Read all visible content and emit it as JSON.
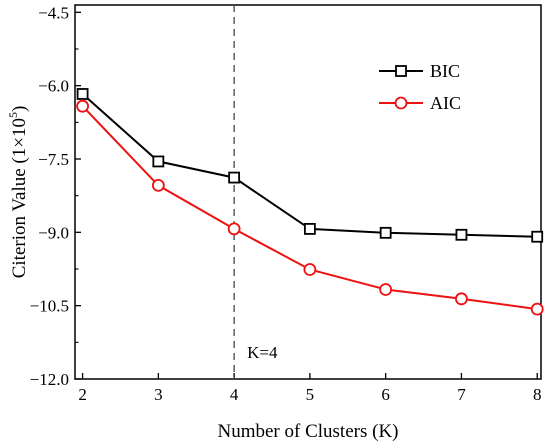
{
  "chart_data": {
    "type": "line",
    "xlabel": "Number of Clusters (K)",
    "ylabel_main": "Citerion Value (1×10",
    "ylabel_exp": "5",
    "ylabel_close": ")",
    "x": [
      2,
      3,
      4,
      5,
      6,
      7,
      8
    ],
    "xlim": [
      1.9,
      8.05
    ],
    "ylim": [
      -12.0,
      -4.35
    ],
    "xticks": [
      2,
      3,
      4,
      5,
      6,
      7,
      8
    ],
    "xtick_labels": [
      "2",
      "3",
      "4",
      "5",
      "6",
      "7",
      "8"
    ],
    "yticks": [
      -12.0,
      -10.5,
      -9.0,
      -7.5,
      -6.0,
      -4.5
    ],
    "ytick_labels": [
      "−12.0",
      "−10.5",
      "−9.0",
      "−7.5",
      "−6.0",
      "−4.5"
    ],
    "series": [
      {
        "name": "BIC",
        "values": [
          -6.17,
          -7.55,
          -7.88,
          -8.93,
          -9.01,
          -9.05,
          -9.09
        ],
        "color": "#000000",
        "marker": "square"
      },
      {
        "name": "AIC",
        "values": [
          -6.42,
          -8.04,
          -8.93,
          -9.76,
          -10.17,
          -10.36,
          -10.57
        ],
        "color": "#ee1111",
        "marker": "circle"
      }
    ],
    "vline": {
      "x": 4,
      "label": "K=4",
      "style": "dashed"
    },
    "legend_position": "top-right",
    "grid": false
  }
}
